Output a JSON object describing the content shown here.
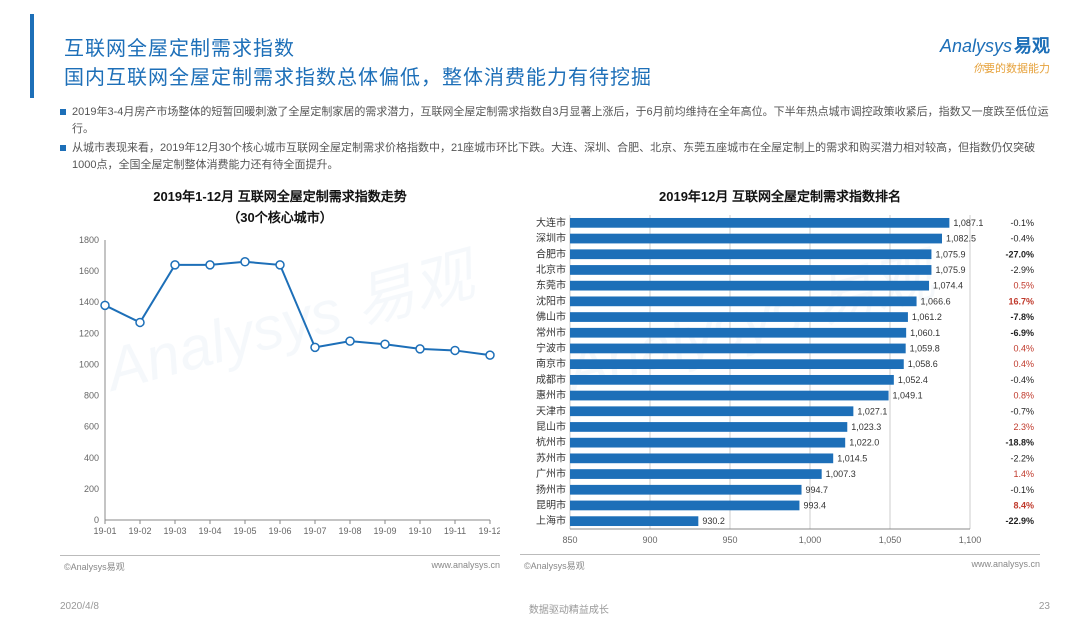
{
  "header": {
    "title1": "互联网全屋定制需求指数",
    "title2": "国内互联网全屋定制需求指数总体偏低，整体消费能力有待挖掘"
  },
  "logo": {
    "brand_en": "Analysys",
    "brand_cn": "易观",
    "slogan_prefix": "你",
    "slogan_rest": "要的数据能力"
  },
  "bullets": [
    "2019年3-4月房产市场整体的短暂回暖刺激了全屋定制家居的需求潜力，互联网全屋定制需求指数自3月显著上涨后，于6月前均维持在全年高位。下半年热点城市调控政策收紧后，指数又一度跌至低位运行。",
    "从城市表现来看，2019年12月30个核心城市互联网全屋定制需求价格指数中，21座城市环比下跌。大连、深圳、合肥、北京、东莞五座城市在全屋定制上的需求和购买潜力相对较高，但指数仍仅突破1000点，全国全屋定制整体消费能力还有待全面提升。"
  ],
  "line_chart": {
    "type": "line",
    "title": "2019年1-12月 互联网全屋定制需求指数走势",
    "subtitle": "（30个核心城市）",
    "x_labels": [
      "19-01",
      "19-02",
      "19-03",
      "19-04",
      "19-05",
      "19-06",
      "19-07",
      "19-08",
      "19-09",
      "19-10",
      "19-11",
      "19-12"
    ],
    "values": [
      1380,
      1270,
      1640,
      1640,
      1660,
      1640,
      1110,
      1150,
      1130,
      1100,
      1090,
      1060
    ],
    "ylim": [
      0,
      1800
    ],
    "ytick_step": 200,
    "line_color": "#1d6fb8",
    "marker_fill": "#ffffff",
    "marker_stroke": "#1d6fb8",
    "marker_r": 4,
    "line_width": 2,
    "axis_color": "#888",
    "grid_color": "#e5e5e5",
    "tick_fontsize": 9,
    "title_fontsize": 13
  },
  "bar_chart": {
    "type": "bar-horizontal",
    "title": "2019年12月 互联网全屋定制需求指数排名",
    "xlim": [
      850,
      1100
    ],
    "xtick_step": 50,
    "bar_color": "#1d6fb8",
    "axis_color": "#888",
    "grid_color": "#ccc",
    "tick_fontsize": 9,
    "value_fontsize": 9,
    "pct_fontsize": 9,
    "label_fontsize": 10,
    "pct_pos_color": "#c0392b",
    "pct_neg_color": "#222",
    "rows": [
      {
        "city": "大连市",
        "value": 1087.1,
        "pct": -0.1
      },
      {
        "city": "深圳市",
        "value": 1082.5,
        "pct": -0.4
      },
      {
        "city": "合肥市",
        "value": 1075.9,
        "pct": -27.0
      },
      {
        "city": "北京市",
        "value": 1075.9,
        "pct": -2.9
      },
      {
        "city": "东莞市",
        "value": 1074.4,
        "pct": 0.5
      },
      {
        "city": "沈阳市",
        "value": 1066.6,
        "pct": 16.7
      },
      {
        "city": "佛山市",
        "value": 1061.2,
        "pct": -7.8
      },
      {
        "city": "常州市",
        "value": 1060.1,
        "pct": -6.9
      },
      {
        "city": "宁波市",
        "value": 1059.8,
        "pct": 0.4
      },
      {
        "city": "南京市",
        "value": 1058.6,
        "pct": 0.4
      },
      {
        "city": "成都市",
        "value": 1052.4,
        "pct": -0.4
      },
      {
        "city": "惠州市",
        "value": 1049.1,
        "pct": 0.8
      },
      {
        "city": "天津市",
        "value": 1027.1,
        "pct": -0.7
      },
      {
        "city": "昆山市",
        "value": 1023.3,
        "pct": 2.3
      },
      {
        "city": "杭州市",
        "value": 1022.0,
        "pct": -18.8
      },
      {
        "city": "苏州市",
        "value": 1014.5,
        "pct": -2.2
      },
      {
        "city": "广州市",
        "value": 1007.3,
        "pct": 1.4
      },
      {
        "city": "扬州市",
        "value": 994.7,
        "pct": -0.1
      },
      {
        "city": "昆明市",
        "value": 993.4,
        "pct": 8.4
      },
      {
        "city": "上海市",
        "value": 930.2,
        "pct": -22.9
      }
    ]
  },
  "source": {
    "left": "©Analysys易观",
    "right": "www.analysys.cn"
  },
  "footer": {
    "date": "2020/4/8",
    "center": "数据驱动精益成长",
    "page": "23"
  }
}
